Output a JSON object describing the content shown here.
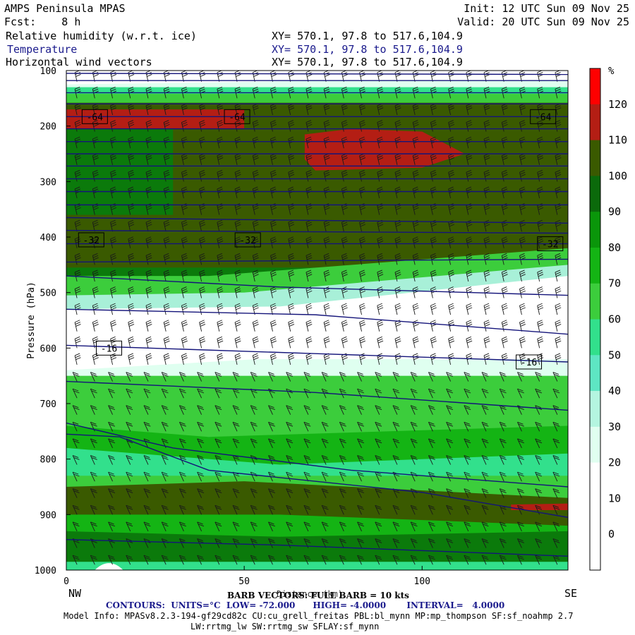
{
  "header": {
    "left_line1": "AMPS Peninsula MPAS",
    "left_line2": "Fcst:    8 h",
    "right_line1": "Init: 12 UTC Sun 09 Nov 25",
    "right_line2": "Valid: 20 UTC Sun 09 Nov 25",
    "fields": [
      {
        "label": "Relative humidity (w.r.t. ice)",
        "xy": "XY= 570.1, 97.8 to 517.6,104.9"
      },
      {
        "label": "Temperature",
        "xy": "XY= 570.1, 97.8 to 517.6,104.9"
      },
      {
        "label": "Horizontal wind vectors",
        "xy": "XY= 570.1, 97.8 to 517.6,104.9"
      }
    ]
  },
  "footer": {
    "barb_line": "BARB VECTORS: FULL BARB = 10 kts",
    "distance_label": "Distance (km)",
    "contours_line": "CONTOURS:  UNITS=°C  LOW= -72.000      HIGH= -4.0000       INTERVAL=   4.0000",
    "model_line1": "Model Info: MPASv8.2.3-194-gf29cd82c CU:cu_grell_freitas PBL:bl_mynn MP:mp_thompson SF:sf_noahmp 2.7",
    "model_line2": "LW:rrtmg_lw SW:rrtmg_sw SFLAY:sf_mynn",
    "nw": "NW",
    "se": "SE"
  },
  "colors": {
    "rh_bands": [
      "#ffffff",
      "#ffffff",
      "#ffffff",
      "#e0fff0",
      "#b4f5e0",
      "#5ee6c3",
      "#32e08c",
      "#3ccd3c",
      "#14b414",
      "#0a960a",
      "#0b6a0b",
      "#3a5a00",
      "#b41e14",
      "#ff0000"
    ],
    "temperature_contour": "#14147a"
  },
  "chart_data": {
    "type": "heatmap",
    "xlabel": "",
    "ylabel": "Pressure (hPa)",
    "x_ticks": [
      0,
      50,
      100
    ],
    "y_ticks": [
      100,
      200,
      300,
      400,
      500,
      600,
      700,
      800,
      900,
      1000
    ],
    "xlim": [
      0,
      141
    ],
    "ylim": [
      1000,
      100
    ],
    "colorbar": {
      "unit": "%",
      "ticks": [
        0,
        10,
        20,
        30,
        40,
        50,
        60,
        70,
        80,
        90,
        100,
        110,
        120
      ],
      "range": [
        -10,
        130
      ]
    },
    "temperature_contour_labels": [
      {
        "value": "-64",
        "x": 8,
        "p": 183
      },
      {
        "value": "-64",
        "x": 48,
        "p": 183
      },
      {
        "value": "-64",
        "x": 134,
        "p": 183
      },
      {
        "value": "-32",
        "x": 7,
        "p": 405
      },
      {
        "value": "-32",
        "x": 51,
        "p": 405
      },
      {
        "value": "-32",
        "x": 136,
        "p": 412
      },
      {
        "value": "-16",
        "x": 12,
        "p": 600
      },
      {
        "value": "-16",
        "x": 130,
        "p": 625
      }
    ],
    "rh_regions": [
      {
        "label": "above 110% (upper red, west)",
        "p_range": [
          165,
          205
        ],
        "x_range": [
          0,
          50
        ]
      },
      {
        "label": "above 110% (upper red, center)",
        "p_range": [
          205,
          275
        ],
        "x_range": [
          67,
          112
        ]
      },
      {
        "label": "dry slot (white)",
        "p_range": [
          530,
          640
        ],
        "x_range": [
          0,
          141
        ]
      },
      {
        "label": "above 110% (lower red, east)",
        "p_range": [
          880,
          895
        ],
        "x_range": [
          125,
          141
        ]
      }
    ]
  }
}
